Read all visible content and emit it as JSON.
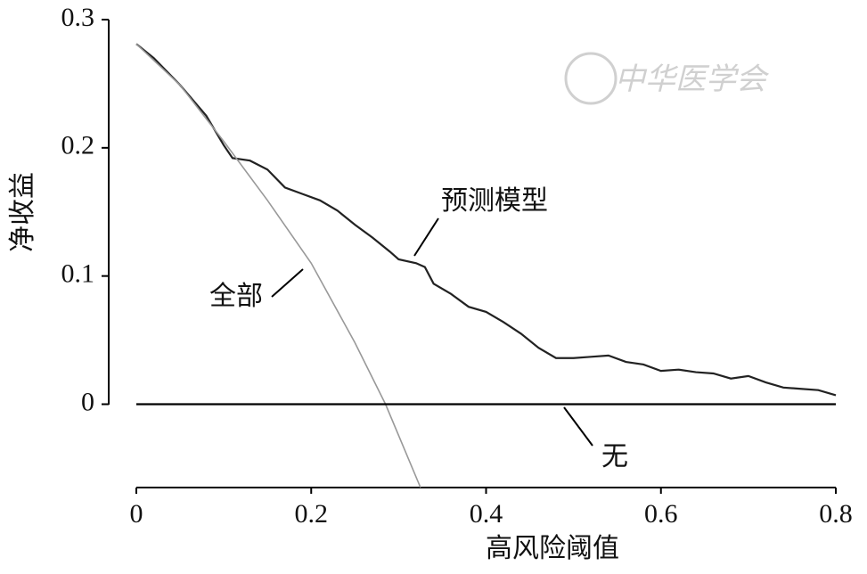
{
  "chart_data": {
    "type": "line",
    "xlabel": "高风险阈值",
    "ylabel": "净收益",
    "watermark": "中华医学会",
    "xlim": [
      0,
      0.8
    ],
    "xticks": [
      0,
      0.2,
      0.4,
      0.6,
      0.8
    ],
    "ylim": [
      -0.065,
      0.3
    ],
    "yticks": [
      0,
      0.1,
      0.2,
      0.3
    ],
    "series": [
      {
        "name": "预测模型",
        "color": "#222222",
        "x": [
          0,
          0.02,
          0.05,
          0.08,
          0.1,
          0.11,
          0.13,
          0.15,
          0.17,
          0.19,
          0.21,
          0.23,
          0.25,
          0.27,
          0.29,
          0.3,
          0.32,
          0.33,
          0.34,
          0.36,
          0.38,
          0.4,
          0.42,
          0.44,
          0.46,
          0.48,
          0.5,
          0.52,
          0.54,
          0.56,
          0.58,
          0.6,
          0.62,
          0.64,
          0.66,
          0.68,
          0.7,
          0.72,
          0.74,
          0.76,
          0.78,
          0.8
        ],
        "values": [
          0.281,
          0.27,
          0.249,
          0.225,
          0.202,
          0.192,
          0.19,
          0.183,
          0.169,
          0.164,
          0.159,
          0.151,
          0.14,
          0.13,
          0.119,
          0.113,
          0.11,
          0.107,
          0.094,
          0.086,
          0.076,
          0.072,
          0.064,
          0.055,
          0.044,
          0.036,
          0.036,
          0.037,
          0.038,
          0.033,
          0.031,
          0.026,
          0.027,
          0.025,
          0.024,
          0.02,
          0.022,
          0.017,
          0.013,
          0.012,
          0.011,
          0.007
        ]
      },
      {
        "name": "全部",
        "color": "#999999",
        "x": [
          0,
          0.05,
          0.1,
          0.15,
          0.2,
          0.25,
          0.285,
          0.325
        ],
        "values": [
          0.281,
          0.249,
          0.205,
          0.159,
          0.11,
          0.048,
          0,
          -0.065
        ]
      },
      {
        "name": "无",
        "color": "#000000",
        "x": [
          0,
          0.8
        ],
        "values": [
          0,
          0
        ]
      }
    ]
  }
}
